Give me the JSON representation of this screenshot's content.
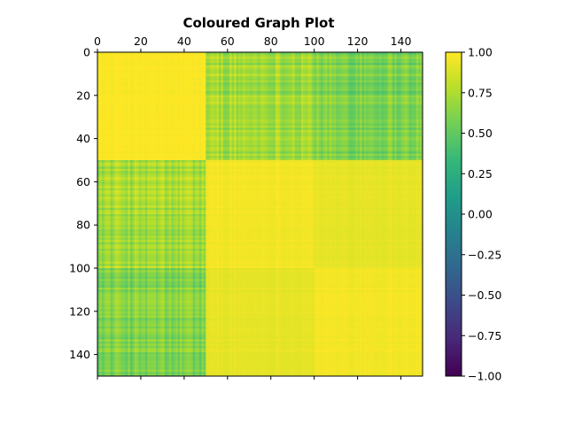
{
  "chart_data": {
    "type": "heatmap",
    "title": "Coloured Graph Plot",
    "xlabel": "",
    "ylabel": "",
    "n": 150,
    "xlim": [
      0,
      150
    ],
    "ylim": [
      150,
      0
    ],
    "x_ticks": [
      0,
      20,
      40,
      60,
      80,
      100,
      120,
      140
    ],
    "x_tick_labels": [
      "0",
      "20",
      "40",
      "60",
      "80",
      "100",
      "120",
      "140"
    ],
    "x_tick_position": "top",
    "y_ticks": [
      0,
      20,
      40,
      60,
      80,
      100,
      120,
      140
    ],
    "y_tick_labels": [
      "0",
      "20",
      "40",
      "60",
      "80",
      "100",
      "120",
      "140"
    ],
    "colormap": "viridis",
    "vmin": -1.0,
    "vmax": 1.0,
    "blocks": [
      {
        "rows": [
          0,
          50
        ],
        "cols": [
          0,
          50
        ],
        "value": 0.99
      },
      {
        "rows": [
          0,
          50
        ],
        "cols": [
          50,
          100
        ],
        "value": 0.72
      },
      {
        "rows": [
          0,
          50
        ],
        "cols": [
          100,
          150
        ],
        "value": 0.6
      },
      {
        "rows": [
          50,
          100
        ],
        "cols": [
          0,
          50
        ],
        "value": 0.72
      },
      {
        "rows": [
          50,
          100
        ],
        "cols": [
          50,
          100
        ],
        "value": 0.97
      },
      {
        "rows": [
          50,
          100
        ],
        "cols": [
          100,
          150
        ],
        "value": 0.93
      },
      {
        "rows": [
          100,
          150
        ],
        "cols": [
          0,
          50
        ],
        "value": 0.6
      },
      {
        "rows": [
          100,
          150
        ],
        "cols": [
          50,
          100
        ],
        "value": 0.93
      },
      {
        "rows": [
          100,
          150
        ],
        "cols": [
          100,
          150
        ],
        "value": 0.97
      }
    ],
    "colorbar": {
      "ticks": [
        1.0,
        0.75,
        0.5,
        0.25,
        0.0,
        -0.25,
        -0.5,
        -0.75,
        -1.0
      ],
      "tick_labels": [
        "1.00",
        "0.75",
        "0.50",
        "0.25",
        "0.00",
        "−0.25",
        "−0.50",
        "−0.75",
        "−1.00"
      ]
    }
  },
  "colors": {
    "viridis": [
      "#440154",
      "#482878",
      "#3e4989",
      "#31688e",
      "#26828e",
      "#1f9e89",
      "#35b779",
      "#6ece58",
      "#b5de2b",
      "#fde725"
    ],
    "axis": "#000000",
    "background": "#ffffff"
  }
}
